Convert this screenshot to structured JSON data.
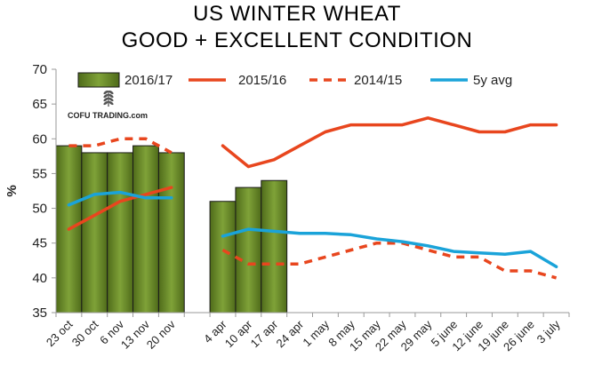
{
  "chart_data": {
    "type": "bar+line",
    "title_line1": "US WINTER WHEAT",
    "title_line2": "GOOD + EXCELLENT CONDITION",
    "ylabel": "%",
    "xlabel": "",
    "ylim": [
      35,
      70
    ],
    "yticks": [
      35,
      40,
      45,
      50,
      55,
      60,
      65,
      70
    ],
    "grid": false,
    "legend_position": "top",
    "categories": [
      "23 oct",
      "30 oct",
      "6 nov",
      "13 nov",
      "20 nov",
      "",
      "4 apr",
      "10 apr",
      "17 apr",
      "24 apr",
      "1 may",
      "8 may",
      "15 may",
      "22 may",
      "29 may",
      "5 june",
      "12 june",
      "19 june",
      "26 june",
      "3 july"
    ],
    "bars": {
      "name": "2016/17",
      "color": "#6b8e23",
      "values": [
        59,
        58,
        58,
        59,
        58,
        null,
        51,
        53,
        54,
        null,
        null,
        null,
        null,
        null,
        null,
        null,
        null,
        null,
        null,
        null
      ]
    },
    "series": [
      {
        "name": "2015/16",
        "style": "solid",
        "color": "#e8461e",
        "values": [
          47,
          49,
          51,
          52,
          53,
          null,
          59,
          56,
          57,
          59,
          61,
          62,
          62,
          62,
          63,
          62,
          61,
          61,
          62,
          62
        ]
      },
      {
        "name": "2014/15",
        "style": "dashed",
        "color": "#e8461e",
        "values": [
          59,
          59,
          60,
          60,
          58,
          null,
          44,
          42,
          42,
          42,
          43,
          44,
          45,
          45,
          44,
          43,
          43,
          41,
          41,
          40
        ]
      },
      {
        "name": "5y avg",
        "style": "solid",
        "color": "#1aa3d9",
        "values": [
          50.5,
          52,
          52.3,
          51.5,
          51.5,
          null,
          46,
          47,
          46.7,
          46.4,
          46.4,
          46.2,
          45.6,
          45.2,
          44.6,
          43.8,
          43.6,
          43.4,
          43.8,
          41.6
        ]
      }
    ],
    "logo_text": "COFU TRADING.com"
  }
}
